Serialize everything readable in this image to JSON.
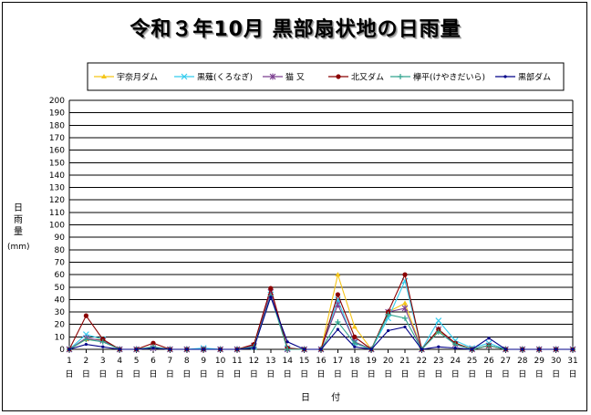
{
  "title": "令和３年10月 黒部扇状地の日雨量",
  "chart_data": {
    "type": "line",
    "title": "令和３年10月 黒部扇状地の日雨量",
    "xlabel": "日 付",
    "ylabel": "日雨量",
    "yunit": "(mm)",
    "ylim": [
      0,
      200
    ],
    "ystep": 10,
    "grid": true,
    "legend_position": "top",
    "x": [
      1,
      2,
      3,
      4,
      5,
      6,
      7,
      8,
      9,
      10,
      11,
      12,
      13,
      14,
      15,
      16,
      17,
      18,
      19,
      20,
      21,
      22,
      23,
      24,
      25,
      26,
      27,
      28,
      29,
      30,
      31
    ],
    "x_suffix": "日",
    "series": [
      {
        "name": "宇奈月ダム",
        "color": "#f5c518",
        "marker": "triangle",
        "values": [
          0,
          8,
          8,
          0,
          0,
          1,
          0,
          0,
          0,
          0,
          0,
          2,
          45,
          0,
          0,
          0,
          60,
          18,
          0,
          30,
          37,
          0,
          15,
          5,
          0,
          3,
          0,
          0,
          0,
          0,
          0
        ]
      },
      {
        "name": "黒薙(くろなぎ)",
        "color": "#33ccee",
        "marker": "x",
        "values": [
          0,
          12,
          8,
          0,
          0,
          1,
          0,
          0,
          1,
          0,
          0,
          2,
          44,
          1,
          0,
          0,
          40,
          5,
          0,
          25,
          55,
          0,
          23,
          7,
          1,
          5,
          0,
          0,
          0,
          0,
          0
        ]
      },
      {
        "name": "猫 又",
        "color": "#7a3d8f",
        "marker": "star",
        "values": [
          0,
          9,
          7,
          0,
          0,
          1,
          0,
          0,
          0,
          0,
          0,
          3,
          46,
          0,
          0,
          0,
          36,
          6,
          0,
          30,
          33,
          0,
          16,
          4,
          0,
          3,
          0,
          0,
          0,
          0,
          0
        ]
      },
      {
        "name": "北又ダム",
        "color": "#8b0000",
        "marker": "circle",
        "values": [
          0,
          27,
          8,
          0,
          0,
          5,
          0,
          0,
          0,
          0,
          0,
          4,
          49,
          1,
          0,
          0,
          44,
          10,
          0,
          30,
          60,
          0,
          16,
          5,
          0,
          3,
          0,
          0,
          0,
          0,
          0
        ]
      },
      {
        "name": "欅平(けやきだいら)",
        "color": "#33a58f",
        "marker": "plus",
        "values": [
          0,
          8,
          6,
          0,
          0,
          2,
          0,
          0,
          0,
          0,
          0,
          2,
          43,
          0,
          0,
          0,
          22,
          5,
          0,
          28,
          25,
          0,
          14,
          4,
          0,
          3,
          0,
          0,
          0,
          0,
          0
        ]
      },
      {
        "name": "黒部ダム",
        "color": "#000088",
        "marker": "dot",
        "values": [
          0,
          4,
          2,
          0,
          0,
          1,
          0,
          0,
          0,
          0,
          0,
          1,
          42,
          6,
          0,
          0,
          16,
          2,
          0,
          15,
          18,
          0,
          2,
          1,
          0,
          9,
          0,
          0,
          0,
          0,
          0
        ]
      }
    ]
  }
}
